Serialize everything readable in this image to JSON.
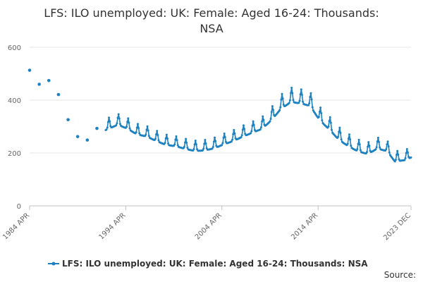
{
  "chart_data": {
    "type": "line",
    "title_lines": [
      "LFS: ILO unemployed: UK: Female: Aged 16-24: Thousands:",
      "NSA"
    ],
    "ylim": [
      0,
      600
    ],
    "y_ticks": [
      0,
      200,
      400,
      600
    ],
    "x_range": [
      "1984-04",
      "2023-12"
    ],
    "x_ticks": [
      "1984 APR",
      "1994 APR",
      "2004 APR",
      "2014 APR",
      "2023 DEC"
    ],
    "x_tick_dates": [
      "1984-04",
      "1994-04",
      "2004-04",
      "2014-04",
      "2023-12"
    ],
    "grid": true,
    "legend_position": "bottom",
    "series": [
      {
        "name": "LFS: ILO unemployed: UK: Female: Aged 16-24: Thousands: NSA",
        "color": "#1f82c0",
        "annual_points": [
          [
            "1984-04",
            513
          ],
          [
            "1985-04",
            460
          ],
          [
            "1986-04",
            474
          ],
          [
            "1987-04",
            421
          ],
          [
            "1988-04",
            326
          ],
          [
            "1989-04",
            262
          ],
          [
            "1990-04",
            249
          ],
          [
            "1991-04",
            293
          ]
        ],
        "monthly_start": "1992-03",
        "seasonal_peak_month": 7,
        "seasonal_amplitude": [
          [
            1992,
            42
          ],
          [
            2000,
            38
          ],
          [
            2008,
            42
          ],
          [
            2011,
            55
          ],
          [
            2014,
            52
          ],
          [
            2023,
            38
          ]
        ],
        "trend_anchors": [
          [
            "1992-03",
            300
          ],
          [
            "1993-06",
            320
          ],
          [
            "1994-06",
            305
          ],
          [
            "1995-06",
            283
          ],
          [
            "1996-06",
            275
          ],
          [
            "1997-06",
            258
          ],
          [
            "1998-06",
            243
          ],
          [
            "1999-06",
            238
          ],
          [
            "2000-06",
            228
          ],
          [
            "2001-06",
            220
          ],
          [
            "2002-06",
            222
          ],
          [
            "2003-06",
            230
          ],
          [
            "2004-06",
            245
          ],
          [
            "2005-06",
            258
          ],
          [
            "2006-06",
            275
          ],
          [
            "2007-06",
            290
          ],
          [
            "2008-06",
            305
          ],
          [
            "2009-06",
            340
          ],
          [
            "2010-06",
            385
          ],
          [
            "2011-06",
            410
          ],
          [
            "2012-06",
            405
          ],
          [
            "2013-06",
            395
          ],
          [
            "2014-06",
            340
          ],
          [
            "2015-06",
            305
          ],
          [
            "2016-06",
            265
          ],
          [
            "2017-06",
            240
          ],
          [
            "2018-06",
            220
          ],
          [
            "2019-06",
            210
          ],
          [
            "2020-06",
            230
          ],
          [
            "2021-06",
            220
          ],
          [
            "2022-04",
            180
          ],
          [
            "2023-04",
            185
          ],
          [
            "2023-12",
            195
          ]
        ]
      }
    ]
  },
  "source_label": "Source:"
}
